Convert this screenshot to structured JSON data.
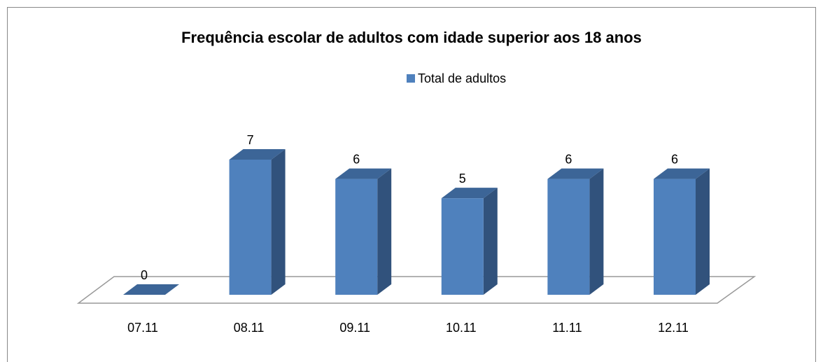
{
  "chart_data": {
    "type": "bar",
    "title": "Frequência escolar de adultos com idade superior aos 18 anos",
    "categories": [
      "07.11",
      "08.11",
      "09.11",
      "10.11",
      "11.11",
      "12.11"
    ],
    "series": [
      {
        "name": "Total de adultos",
        "color": "#4f81bd",
        "values": [
          0,
          7,
          6,
          5,
          6,
          6
        ]
      }
    ]
  }
}
